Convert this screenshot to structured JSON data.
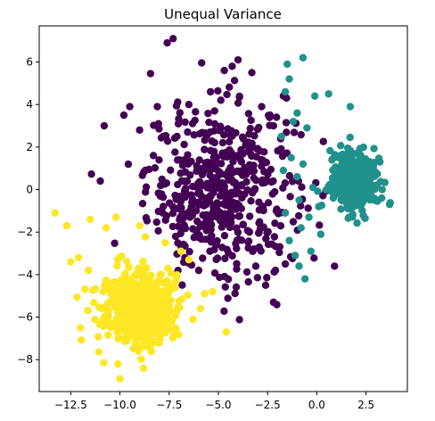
{
  "chart_data": {
    "type": "scatter",
    "title": "Unequal Variance",
    "xlabel": "",
    "ylabel": "",
    "xlim": [
      -14.1,
      4.6
    ],
    "ylim": [
      -9.5,
      7.7
    ],
    "x_ticks": [
      -12.5,
      -10.0,
      -7.5,
      -5.0,
      -2.5,
      0.0,
      2.5
    ],
    "x_tick_labels": [
      "−12.5",
      "−10.0",
      "−7.5",
      "−5.0",
      "−2.5",
      "0.0",
      "2.5"
    ],
    "y_ticks": [
      -8,
      -6,
      -4,
      -2,
      0,
      2,
      4,
      6
    ],
    "y_tick_labels": [
      "−8",
      "−6",
      "−4",
      "−2",
      "0",
      "2",
      "4",
      "6"
    ],
    "grid": false,
    "legend": "none",
    "series": [
      {
        "color": "#440154",
        "center": [
          -4.8,
          0.0
        ],
        "std": [
          1.9,
          2.0
        ],
        "count": 500,
        "points": [
          [
            -7.3,
            7.1
          ],
          [
            -7.6,
            6.9
          ],
          [
            -4.0,
            6.1
          ],
          [
            -4.3,
            5.8
          ],
          [
            -4.7,
            5.6
          ],
          [
            -3.3,
            5.5
          ],
          [
            -9.5,
            3.9
          ],
          [
            -10.8,
            3.0
          ],
          [
            -9.8,
            3.5
          ],
          [
            -11.0,
            0.4
          ],
          [
            -9.0,
            2.8
          ],
          [
            -1.7,
            4.4
          ],
          [
            -2.2,
            3.0
          ],
          [
            -2.6,
            -4.5
          ],
          [
            -2.2,
            -5.3
          ],
          [
            -3.1,
            -3.6
          ],
          [
            -6.7,
            -3.2
          ],
          [
            -6.0,
            -3.8
          ],
          [
            -2.1,
            -3.8
          ],
          [
            -1.6,
            -3.5
          ],
          [
            -8.1,
            3.9
          ],
          [
            -7.8,
            2.5
          ],
          [
            -8.3,
            1.6
          ],
          [
            -6.5,
            4.0
          ],
          [
            -5.4,
            4.6
          ],
          [
            -2.8,
            3.9
          ]
        ]
      },
      {
        "color": "#21918c",
        "center": [
          1.9,
          0.4
        ],
        "std": [
          0.6,
          0.6
        ],
        "count": 500,
        "points": [
          [
            -0.7,
            6.2
          ],
          [
            -1.5,
            5.9
          ],
          [
            -1.4,
            5.2
          ],
          [
            -1.6,
            4.6
          ],
          [
            0.6,
            4.5
          ],
          [
            -0.1,
            4.4
          ],
          [
            1.7,
            3.9
          ],
          [
            -1.0,
            3.6
          ],
          [
            -1.2,
            3.2
          ],
          [
            -0.5,
            2.9
          ],
          [
            -1.8,
            2.5
          ],
          [
            -0.6,
            -4.2
          ],
          [
            -0.9,
            -3.6
          ],
          [
            -1.1,
            -3.1
          ],
          [
            -0.3,
            -2.9
          ],
          [
            -1.4,
            -2.4
          ],
          [
            0.2,
            -2.1
          ],
          [
            -0.8,
            -1.8
          ],
          [
            -1.6,
            -1.1
          ],
          [
            -0.4,
            -1.3
          ],
          [
            3.7,
            -0.7
          ],
          [
            3.3,
            -0.4
          ],
          [
            -1.3,
            1.5
          ],
          [
            -0.7,
            1.2
          ],
          [
            -1.0,
            0.6
          ],
          [
            -0.2,
            0.1
          ],
          [
            -0.9,
            -0.5
          ],
          [
            -1.7,
            0.9
          ],
          [
            0.1,
            -0.8
          ]
        ]
      },
      {
        "color": "#fde725",
        "center": [
          -8.9,
          -5.6
        ],
        "std": [
          0.95,
          0.95
        ],
        "count": 500,
        "points": [
          [
            -13.3,
            -1.1
          ],
          [
            -12.7,
            -1.7
          ],
          [
            -11.5,
            -1.4
          ],
          [
            -10.2,
            -1.3
          ],
          [
            -10.7,
            -1.8
          ],
          [
            -9.0,
            -1.7
          ],
          [
            -12.1,
            -3.2
          ],
          [
            -12.5,
            -3.4
          ],
          [
            -11.6,
            -3.8
          ],
          [
            -10.0,
            -8.9
          ],
          [
            -10.1,
            -8.2
          ],
          [
            -8.8,
            -8.4
          ],
          [
            -5.7,
            -4.9
          ],
          [
            -5.3,
            -4.8
          ],
          [
            -5.9,
            -5.6
          ],
          [
            -4.6,
            -6.7
          ],
          [
            -6.5,
            -3.3
          ],
          [
            -6.9,
            -2.9
          ],
          [
            -7.7,
            -2.5
          ],
          [
            -12.0,
            -6.5
          ]
        ]
      }
    ]
  }
}
